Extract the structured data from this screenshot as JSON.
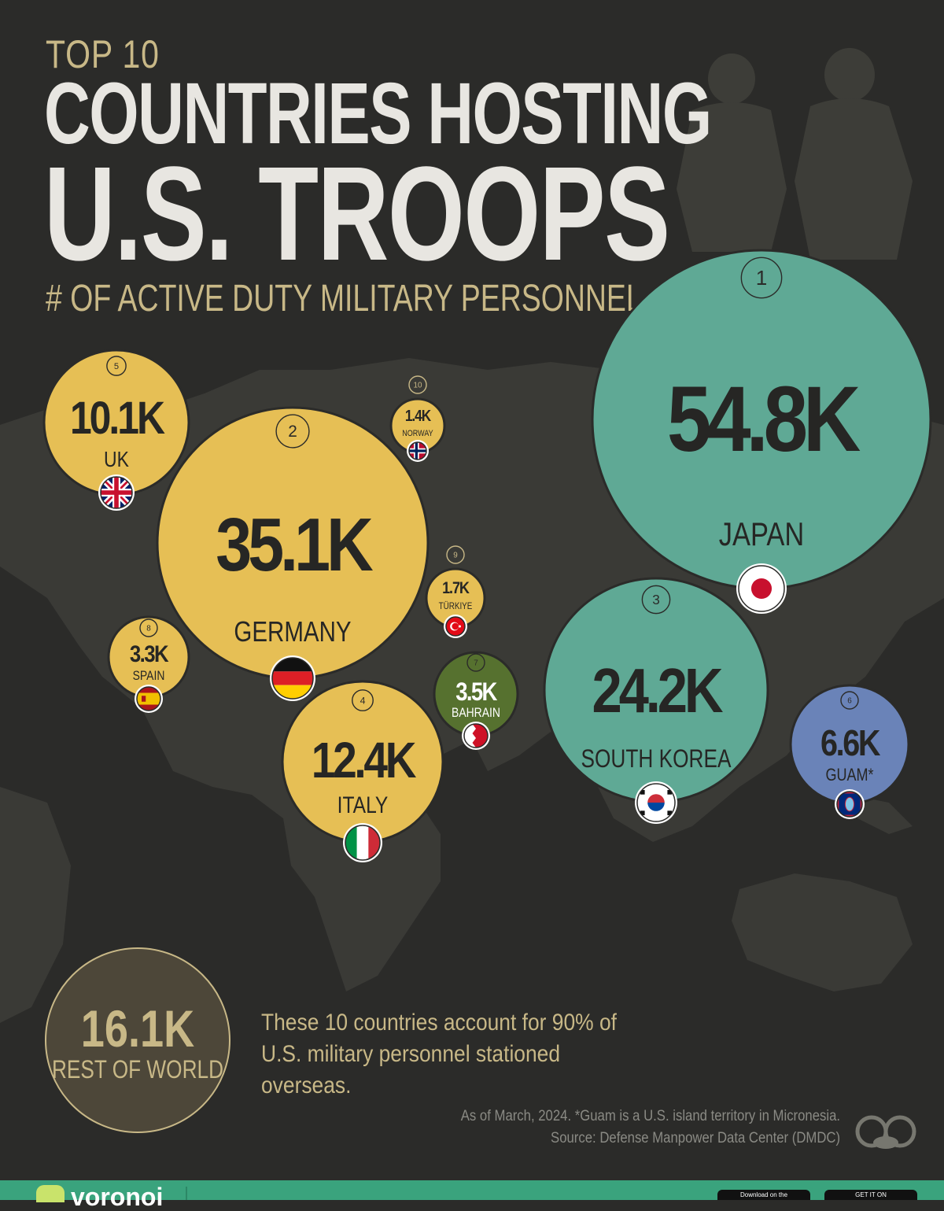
{
  "header": {
    "kicker": "TOP 10",
    "title_line1": "COUNTRIES HOSTING",
    "title_line2": "U.S. TROOPS",
    "subtitle": "# OF ACTIVE DUTY MILITARY PERSONNEL"
  },
  "chart_data": {
    "type": "bubble",
    "title": "TOP 10 COUNTRIES HOSTING U.S. TROOPS",
    "subtitle": "# OF ACTIVE DUTY MILITARY PERSONNEL",
    "points": [
      {
        "rank": "1",
        "label": "54.8K",
        "country": "JAPAN",
        "value": 54.8,
        "flag": "japan-flag-icon",
        "color": "#5fa995"
      },
      {
        "rank": "2",
        "label": "35.1K",
        "country": "GERMANY",
        "value": 35.1,
        "flag": "germany-flag-icon",
        "color": "#e6bf55"
      },
      {
        "rank": "3",
        "label": "24.2K",
        "country": "SOUTH KOREA",
        "value": 24.2,
        "flag": "south-korea-flag-icon",
        "color": "#5fa995"
      },
      {
        "rank": "4",
        "label": "12.4K",
        "country": "ITALY",
        "value": 12.4,
        "flag": "italy-flag-icon",
        "color": "#e6bf55"
      },
      {
        "rank": "5",
        "label": "10.1K",
        "country": "UK",
        "value": 10.1,
        "flag": "uk-flag-icon",
        "color": "#e6bf55"
      },
      {
        "rank": "6",
        "label": "6.6K",
        "country": "GUAM*",
        "value": 6.6,
        "flag": "guam-flag-icon",
        "color": "#6a83b8"
      },
      {
        "rank": "7",
        "label": "3.5K",
        "country": "BAHRAIN",
        "value": 3.5,
        "flag": "bahrain-flag-icon",
        "color": "#56712f"
      },
      {
        "rank": "8",
        "label": "3.3K",
        "country": "SPAIN",
        "value": 3.3,
        "flag": "spain-flag-icon",
        "color": "#e6bf55"
      },
      {
        "rank": "9",
        "label": "1.7K",
        "country": "TÜRKIYE",
        "value": 1.7,
        "flag": "turkiye-flag-icon",
        "color": "#e6bf55"
      },
      {
        "rank": "10",
        "label": "1.4K",
        "country": "NORWAY",
        "value": 1.4,
        "flag": "norway-flag-icon",
        "color": "#e6bf55"
      }
    ],
    "rest_of_world": {
      "label": "16.1K",
      "caption": "REST OF WORLD",
      "value": 16.1
    }
  },
  "note": "These 10 countries account for 90% of U.S. military personnel stationed overseas.",
  "footnote_line1": "As of March, 2024. *Guam is a U.S. island territory in Micronesia.",
  "footnote_line2": "Source: Defense Manpower Data Center (DMDC)",
  "footer": {
    "brand": "voronoi",
    "badge_apple": "Download on the",
    "badge_google": "GET IT ON"
  },
  "colors": {
    "background": "#2b2b29",
    "gold": "#e6bf55",
    "teal": "#5fa995",
    "footer_green": "#3aa37d"
  }
}
